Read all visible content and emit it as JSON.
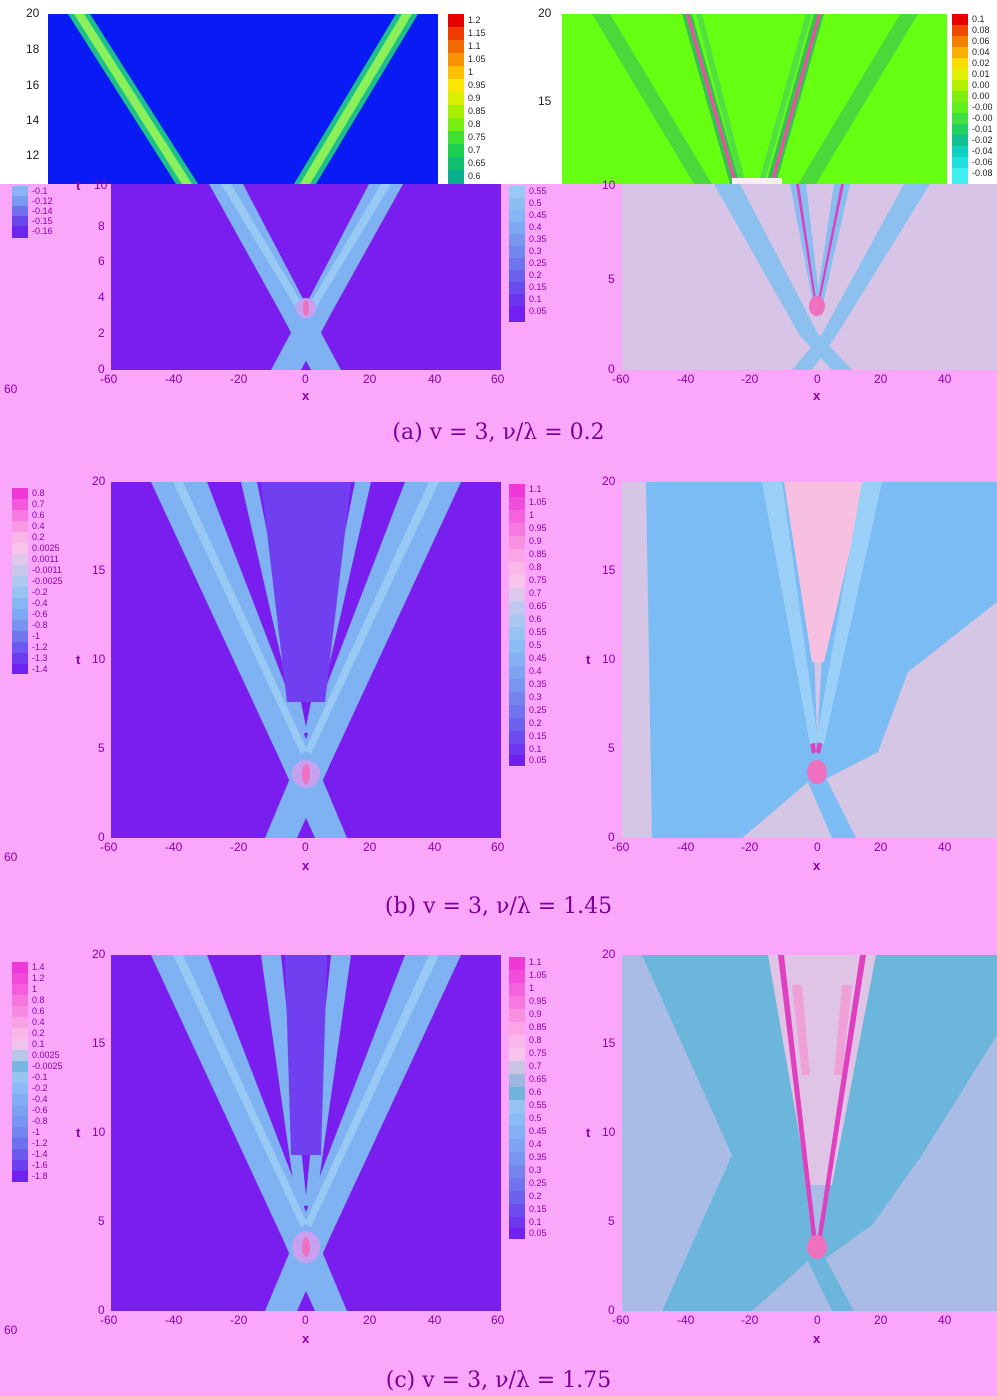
{
  "captions": {
    "a": "(a) v = 3, ν/λ = 0.2",
    "b": "(b) v = 3, ν/λ = 1.45",
    "c": "(c) v = 3, ν/λ = 1.75"
  },
  "axes": {
    "x_label": "x",
    "t_label": "t",
    "x_ticks": [
      "-60",
      "-40",
      "-20",
      "0",
      "20",
      "40",
      "60"
    ],
    "x_ticks_right": [
      "-60",
      "-40",
      "-20",
      "0",
      "20",
      "40"
    ],
    "cut_tick": "60"
  },
  "top_overlay": {
    "left_yticks": [
      "20",
      "18",
      "16",
      "14",
      "12"
    ],
    "right_yticks": [
      "20",
      "15"
    ],
    "left_colorbar": [
      "1.2",
      "1.15",
      "1.1",
      "1.05",
      "1",
      "0.95",
      "0.9",
      "0.85",
      "0.8",
      "0.75",
      "0.7",
      "0.65",
      "0.6"
    ],
    "right_colorbar": [
      "0.1",
      "0.08",
      "0.06",
      "0.04",
      "0.02",
      "0.01",
      "0.00",
      "0.00",
      "-0.00",
      "-0.00",
      "-0.01",
      "-0.02",
      "-0.04",
      "-0.06",
      "-0.08"
    ]
  },
  "row_a": {
    "t_ticks": [
      "10",
      "8",
      "6",
      "4",
      "2",
      "0"
    ],
    "t_ticks_right": [
      "10",
      "5",
      "0"
    ],
    "left_colorbar": [
      "-0.1",
      "-0.12",
      "-0.14",
      "-0.15",
      "-0.16"
    ],
    "mid_colorbar": [
      "0.55",
      "0.5",
      "0.45",
      "0.4",
      "0.35",
      "0.3",
      "0.25",
      "0.2",
      "0.15",
      "0.1",
      "0.05"
    ]
  },
  "row_b": {
    "t_ticks": [
      "20",
      "15",
      "10",
      "5",
      "0"
    ],
    "left_colorbar": [
      "0.8",
      "0.7",
      "0.6",
      "0.4",
      "0.2",
      "0.0025",
      "0.0011",
      "-0.0011",
      "-0.0025",
      "-0.2",
      "-0.4",
      "-0.6",
      "-0.8",
      "-1",
      "-1.2",
      "-1.3",
      "-1.4"
    ],
    "mid_colorbar": [
      "1.1",
      "1.05",
      "1",
      "0.95",
      "0.9",
      "0.85",
      "0.8",
      "0.75",
      "0.7",
      "0.65",
      "0.6",
      "0.55",
      "0.5",
      "0.45",
      "0.4",
      "0.35",
      "0.3",
      "0.25",
      "0.2",
      "0.15",
      "0.1",
      "0.05"
    ]
  },
  "row_c": {
    "t_ticks": [
      "20",
      "15",
      "10",
      "5",
      "0"
    ],
    "left_colorbar": [
      "1.4",
      "1.2",
      "1",
      "0.8",
      "0.6",
      "0.4",
      "0.2",
      "0.1",
      "0.0025",
      "-0.0025",
      "-0.1",
      "-0.2",
      "-0.4",
      "-0.6",
      "-0.8",
      "-1",
      "-1.2",
      "-1.4",
      "-1.6",
      "-1.8"
    ],
    "mid_colorbar": [
      "1.1",
      "1.05",
      "1",
      "0.95",
      "0.9",
      "0.85",
      "0.8",
      "0.75",
      "0.7",
      "0.65",
      "0.6",
      "0.55",
      "0.5",
      "0.45",
      "0.4",
      "0.35",
      "0.3",
      "0.25",
      "0.2",
      "0.15",
      "0.1",
      "0.05"
    ]
  },
  "colors": {
    "page_bg": "#faa6fa",
    "amp_bg": "#7a1ef0",
    "amp_band": "#7fb2f2",
    "phase_bg_a": "#d8c4e6",
    "phase_bg_b": "#d4c6e4",
    "phase_bg_c": "#a8bce6",
    "phase_band": "#7cbcf4",
    "top_left_bg": "#0a1af5",
    "top_left_band": "#3ae08a",
    "top_right_bg": "#66ff11",
    "top_right_band": "#44cc44"
  }
}
